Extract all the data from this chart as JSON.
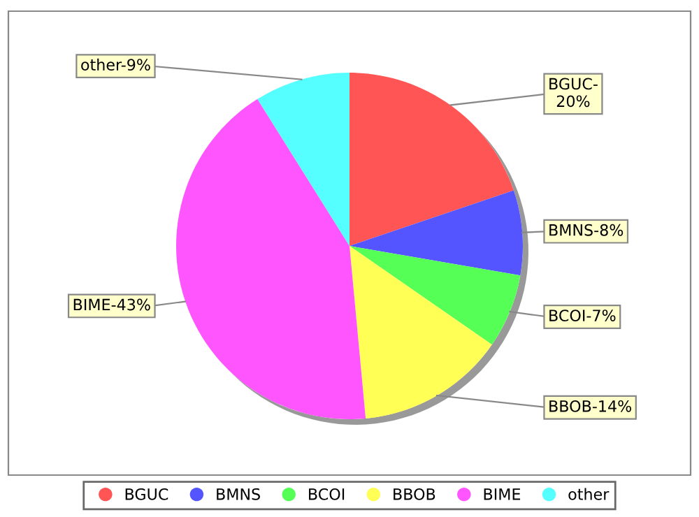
{
  "chart_data": {
    "type": "pie",
    "categories": [
      "BGUC",
      "BMNS",
      "BCOI",
      "BBOB",
      "BIME",
      "other"
    ],
    "values": [
      20,
      8,
      7,
      14,
      43,
      9
    ],
    "colors": [
      "#ff5555",
      "#5555ff",
      "#55ff55",
      "#ffff55",
      "#ff55ff",
      "#55ffff"
    ],
    "value_labels": [
      "BGUC-\n20%",
      "BMNS-8%",
      "BCOI-7%",
      "BBOB-14%",
      "BIME-43%",
      "other-9%"
    ],
    "legend": "bottom"
  }
}
